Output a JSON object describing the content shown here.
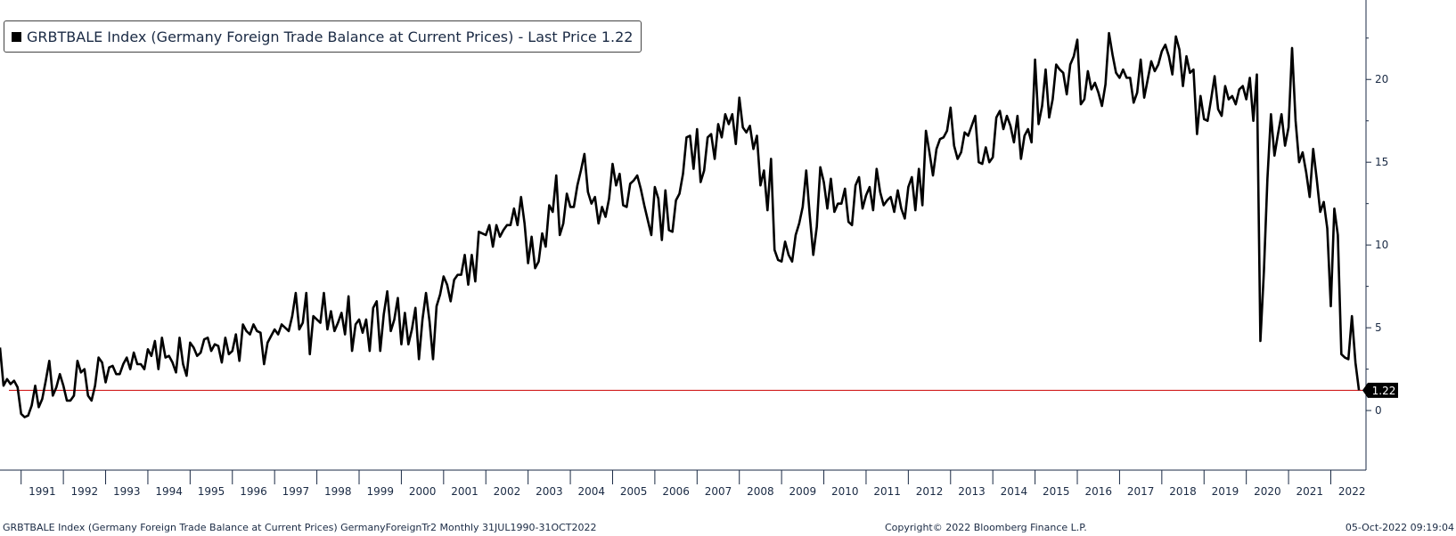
{
  "legend": {
    "label": "GRBTBALE Index (Germany Foreign Trade Balance at Current Prices) - Last Price 1.22"
  },
  "footer": {
    "left": "GRBTBALE Index (Germany Foreign Trade Balance at Current Prices) GermanyForeignTr2  Monthly 31JUL1990-31OCT2022",
    "middle": "Copyright© 2022 Bloomberg Finance L.P.",
    "right": "05-Oct-2022 09:19:04"
  },
  "chart_data": {
    "type": "line",
    "title": "",
    "xlabel": "",
    "ylabel": "",
    "x_start": "1990-07",
    "x_end": "2022-08",
    "xlim": [
      "1990-07",
      "2022-11"
    ],
    "ylim": [
      -3.6,
      24.8
    ],
    "yticks": [
      0,
      5,
      10,
      15,
      20
    ],
    "ytick_labels": [
      "0",
      "5",
      "10",
      "15",
      "20"
    ],
    "xtick_labels": [
      "1991",
      "1992",
      "1993",
      "1994",
      "1995",
      "1996",
      "1997",
      "1998",
      "1999",
      "2000",
      "2001",
      "2002",
      "2003",
      "2004",
      "2005",
      "2006",
      "2007",
      "2008",
      "2009",
      "2010",
      "2011",
      "2012",
      "2013",
      "2014",
      "2015",
      "2016",
      "2017",
      "2018",
      "2019",
      "2020",
      "2021",
      "2022"
    ],
    "last_price": 1.22,
    "last_price_label": "1.22",
    "grid": false,
    "legend_position": "top-left",
    "colors": {
      "series": "#000000",
      "reference_line": "#cc0000",
      "tag_bg": "#000000",
      "tag_text": "#ffffff"
    },
    "series": [
      {
        "name": "GRBTBALE Index",
        "values": [
          3.8,
          1.5,
          1.9,
          1.6,
          1.8,
          1.4,
          -0.2,
          -0.4,
          -0.3,
          0.3,
          1.5,
          0.2,
          0.7,
          1.8,
          3.0,
          0.9,
          1.4,
          2.2,
          1.5,
          0.6,
          0.6,
          0.9,
          3.0,
          2.3,
          2.5,
          0.9,
          0.6,
          1.5,
          3.2,
          2.9,
          1.7,
          2.6,
          2.7,
          2.2,
          2.2,
          2.8,
          3.2,
          2.5,
          3.5,
          2.8,
          2.8,
          2.5,
          3.7,
          3.3,
          4.2,
          2.5,
          4.4,
          3.2,
          3.3,
          2.9,
          2.3,
          4.4,
          2.8,
          2.1,
          4.1,
          3.8,
          3.3,
          3.5,
          4.3,
          4.4,
          3.6,
          4.0,
          3.9,
          2.9,
          4.4,
          3.4,
          3.6,
          4.6,
          3.0,
          5.2,
          4.8,
          4.6,
          5.2,
          4.8,
          4.7,
          2.8,
          4.1,
          4.5,
          4.9,
          4.6,
          5.2,
          5.0,
          4.8,
          5.7,
          7.1,
          4.9,
          5.3,
          7.1,
          3.4,
          5.7,
          5.5,
          5.3,
          7.1,
          4.9,
          6.0,
          4.8,
          5.3,
          5.9,
          4.6,
          6.9,
          3.6,
          5.2,
          5.5,
          4.7,
          5.5,
          3.6,
          6.2,
          6.6,
          3.6,
          5.8,
          7.2,
          4.8,
          5.5,
          6.8,
          4.0,
          5.9,
          4.0,
          4.9,
          6.2,
          3.1,
          5.5,
          7.1,
          5.4,
          3.1,
          6.3,
          7.0,
          8.1,
          7.6,
          6.6,
          7.9,
          8.2,
          8.2,
          9.4,
          7.6,
          9.4,
          7.8,
          10.8,
          10.7,
          10.6,
          11.2,
          9.9,
          11.2,
          10.5,
          10.9,
          11.2,
          11.2,
          12.2,
          11.2,
          12.9,
          11.3,
          8.9,
          10.5,
          8.6,
          9.0,
          10.7,
          9.9,
          12.4,
          12.0,
          14.2,
          10.6,
          11.3,
          13.1,
          12.3,
          12.3,
          13.6,
          14.5,
          15.5,
          13.2,
          12.5,
          12.9,
          11.3,
          12.3,
          11.7,
          12.8,
          14.9,
          13.6,
          14.3,
          12.4,
          12.3,
          13.7,
          13.9,
          14.2,
          13.4,
          12.4,
          11.5,
          10.6,
          13.5,
          12.8,
          10.3,
          13.3,
          10.9,
          10.8,
          12.7,
          13.1,
          14.3,
          16.5,
          16.6,
          14.6,
          17.0,
          13.8,
          14.5,
          16.5,
          16.7,
          15.2,
          17.3,
          16.5,
          17.9,
          17.3,
          17.9,
          16.1,
          18.9,
          17.1,
          16.8,
          17.2,
          15.8,
          16.6,
          13.6,
          14.5,
          12.1,
          15.2,
          9.7,
          9.1,
          9.0,
          10.2,
          9.4,
          9.0,
          10.6,
          11.3,
          12.3,
          14.5,
          11.8,
          9.4,
          11.1,
          14.7,
          13.8,
          12.2,
          14.0,
          12.0,
          12.5,
          12.5,
          13.4,
          11.4,
          11.2,
          13.6,
          14.1,
          12.2,
          13.0,
          13.5,
          12.1,
          14.6,
          13.2,
          12.4,
          12.7,
          12.9,
          12.0,
          13.3,
          12.2,
          11.6,
          13.5,
          14.1,
          12.1,
          14.6,
          12.4,
          16.9,
          15.6,
          14.2,
          15.8,
          16.4,
          16.5,
          16.9,
          18.3,
          16.0,
          15.2,
          15.6,
          16.8,
          16.6,
          17.2,
          17.8,
          15.0,
          14.9,
          15.9,
          15.0,
          15.3,
          17.7,
          18.1,
          17.0,
          17.8,
          17.2,
          16.2,
          17.8,
          15.2,
          16.6,
          17.0,
          16.2,
          21.2,
          17.3,
          18.4,
          20.6,
          17.7,
          18.8,
          20.9,
          20.6,
          20.4,
          19.1,
          20.9,
          21.4,
          22.4,
          18.5,
          18.8,
          20.5,
          19.4,
          19.8,
          19.2,
          18.4,
          19.7,
          22.8,
          21.5,
          20.4,
          20.1,
          20.6,
          20.1,
          20.1,
          18.6,
          19.2,
          21.2,
          18.9,
          20.0,
          21.1,
          20.5,
          20.9,
          21.7,
          22.1,
          21.4,
          20.3,
          22.6,
          21.8,
          19.6,
          21.4,
          20.4,
          20.6,
          16.7,
          19.0,
          17.6,
          17.5,
          18.8,
          20.2,
          18.2,
          17.8,
          19.6,
          18.8,
          19.0,
          18.5,
          19.4,
          19.6,
          18.8,
          20.1,
          17.5,
          20.3,
          4.2,
          8.4,
          14.0,
          17.9,
          15.4,
          16.7,
          17.9,
          16.0,
          17.1,
          21.9,
          17.5,
          15.0,
          15.6,
          14.4,
          12.9,
          15.8,
          14.0,
          12.0,
          12.6,
          11.0,
          6.3,
          12.2,
          10.6,
          3.4,
          3.2,
          3.1,
          5.7,
          2.9,
          1.22
        ]
      }
    ]
  }
}
